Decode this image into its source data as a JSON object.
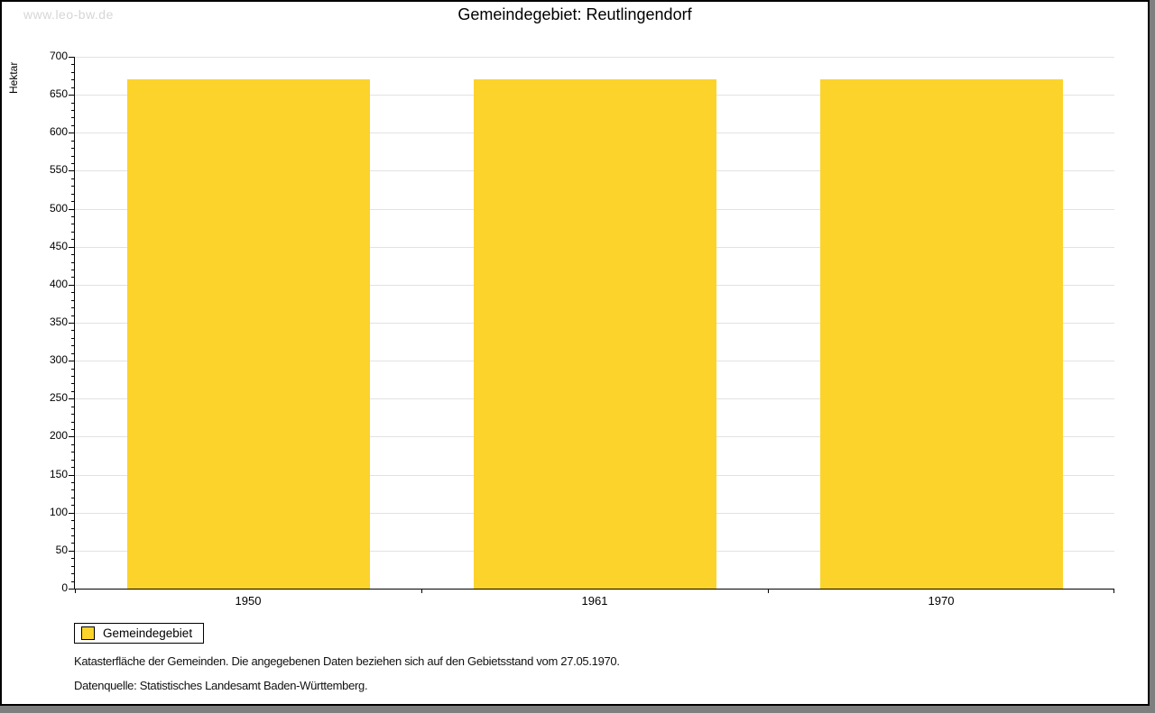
{
  "watermark": "www.leo-bw.de",
  "header": {
    "title": "Gemeindegebiet: Reutlingendorf"
  },
  "chart_data": {
    "type": "bar",
    "title": "Gemeindegebiet: Reutlingendorf",
    "categories": [
      "1950",
      "1961",
      "1970"
    ],
    "series": [
      {
        "name": "Gemeindegebiet",
        "values": [
          670,
          670,
          670
        ]
      }
    ],
    "xlabel": "",
    "ylabel": "Hektar",
    "ylim": [
      0,
      700
    ],
    "ytick_step": 50,
    "minor_tick_step": 10,
    "grid": true,
    "legend_position": "bottom-left",
    "bar_color": "#fcd32b"
  },
  "legend": {
    "label": "Gemeindegebiet"
  },
  "footer": {
    "line1": "Katasterfläche der Gemeinden. Die angegebenen Daten beziehen sich auf den Gebietsstand vom 27.05.1970.",
    "line2": "Datenquelle: Statistisches Landesamt Baden-Württemberg."
  },
  "colors": {
    "bar": "#fcd32b",
    "grid": "#e2e2e2",
    "axis": "#000000",
    "watermark": "#d6d6d6",
    "shadow": "#7f7f7f"
  }
}
